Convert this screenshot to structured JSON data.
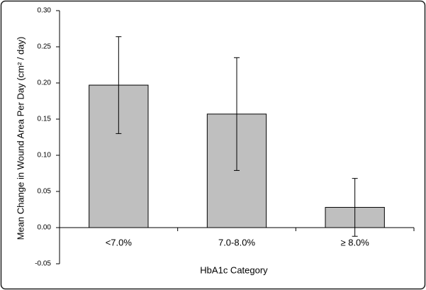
{
  "chart_data": {
    "type": "bar",
    "title": null,
    "xlabel": "HbA1c Category",
    "ylabel": "Mean Change in Wound Area Per Day (cm² / day)",
    "categories": [
      "<7.0%",
      "7.0-8.0%",
      "≥ 8.0%"
    ],
    "values": [
      0.197,
      0.157,
      0.028
    ],
    "errors": [
      0.067,
      0.078,
      0.04
    ],
    "color": "#bfbfbf",
    "ylim": [
      -0.05,
      0.3
    ],
    "yticks": [
      -0.05,
      {
        "value": 0,
        "label": "0.00"
      },
      0.05,
      {
        "value": 0.1,
        "label": "0.10"
      },
      0.15,
      {
        "value": 0.2,
        "label": "0.20"
      },
      0.25,
      {
        "value": 0.3,
        "label": "0.30"
      }
    ],
    "grid": false
  }
}
